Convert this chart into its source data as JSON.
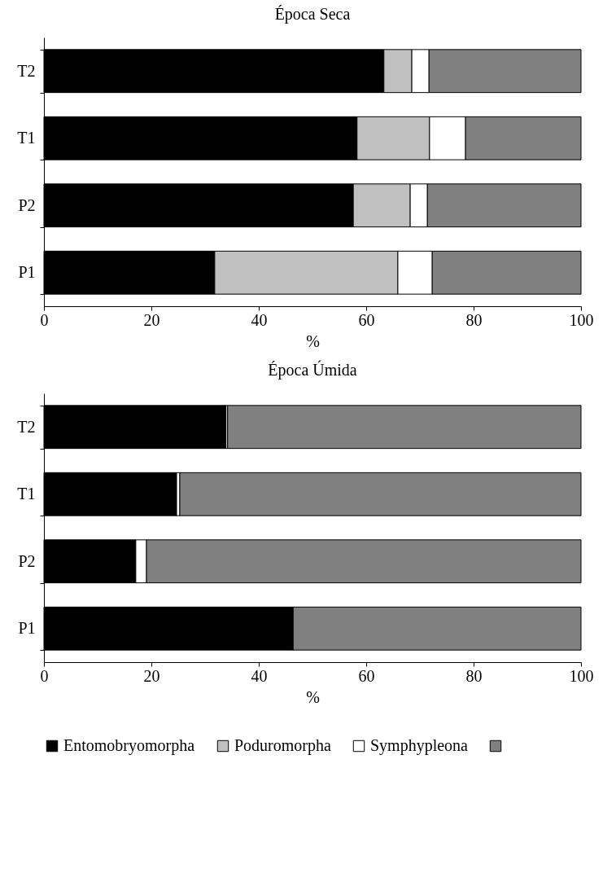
{
  "chart_data": [
    {
      "type": "bar",
      "title": "Época Seca",
      "xlabel": "%",
      "orientation": "horizontal",
      "stacked": true,
      "categories": [
        "T2",
        "T1",
        "P2",
        "P1"
      ],
      "xlim": [
        0,
        100
      ],
      "xticks": [
        0,
        20,
        40,
        60,
        80,
        100
      ],
      "grid": false,
      "legend": false,
      "series": [
        {
          "color": "#000000",
          "values": [
            63.3,
            58.3,
            57.6,
            31.8
          ]
        },
        {
          "color": "#c0c0c0",
          "values": [
            5.2,
            13.5,
            10.6,
            34.1
          ]
        },
        {
          "color": "#ffffff",
          "values": [
            3.2,
            6.7,
            3.2,
            6.4
          ]
        },
        {
          "color": "#808080",
          "values": [
            28.3,
            21.5,
            28.6,
            27.7
          ]
        }
      ]
    },
    {
      "type": "bar",
      "title": "Época Úmida",
      "xlabel": "%",
      "orientation": "horizontal",
      "stacked": true,
      "categories": [
        "T2",
        "T1",
        "P2",
        "P1"
      ],
      "xlim": [
        0,
        100
      ],
      "xticks": [
        0,
        20,
        40,
        60,
        80,
        100
      ],
      "grid": false,
      "legend": "bottom",
      "series": [
        {
          "name": "Entomobryomorpha",
          "color": "#000000",
          "values": [
            33.9,
            24.7,
            17.1,
            46.4
          ]
        },
        {
          "name": "Poduromorpha",
          "color": "#c0c0c0",
          "values": [
            0,
            0,
            0,
            0
          ]
        },
        {
          "name": "Symphypleona",
          "color": "#ffffff",
          "values": [
            0.3,
            0.6,
            2.0,
            0
          ]
        },
        {
          "color": "#808080",
          "values": [
            65.8,
            74.7,
            80.9,
            53.6
          ]
        }
      ]
    }
  ]
}
